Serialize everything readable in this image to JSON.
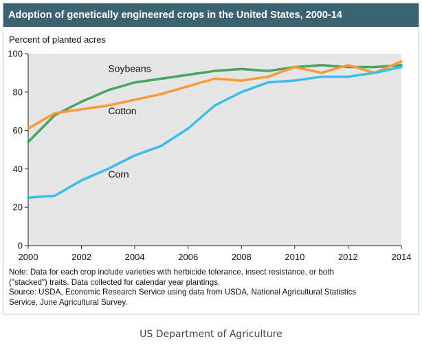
{
  "chart_data": {
    "type": "line",
    "title": "Adoption of genetically engineered crops in the United States, 2000-14",
    "ylabel": "Percent of planted acres",
    "xlabel": "",
    "x": [
      2000,
      2001,
      2002,
      2003,
      2004,
      2005,
      2006,
      2007,
      2008,
      2009,
      2010,
      2011,
      2012,
      2013,
      2014
    ],
    "xlim": [
      2000,
      2014
    ],
    "ylim": [
      0,
      100
    ],
    "x_ticks": [
      "2000",
      "2002",
      "2004",
      "2006",
      "2008",
      "2010",
      "2012",
      "2014"
    ],
    "y_ticks": [
      "0",
      "20",
      "40",
      "60",
      "80",
      "100"
    ],
    "grid": false,
    "series": [
      {
        "name": "Soybeans",
        "color": "#4aa564",
        "values": [
          54,
          68,
          75,
          81,
          85,
          87,
          89,
          91,
          92,
          91,
          93,
          94,
          93,
          93,
          94
        ]
      },
      {
        "name": "Cotton",
        "color": "#f89c3a",
        "values": [
          61,
          69,
          71,
          73,
          76,
          79,
          83,
          87,
          86,
          88,
          93,
          90,
          94,
          90,
          96
        ]
      },
      {
        "name": "Corn",
        "color": "#3bbfe8",
        "values": [
          25,
          26,
          34,
          40,
          47,
          52,
          61,
          73,
          80,
          85,
          86,
          88,
          88,
          90,
          93
        ]
      }
    ],
    "series_labels": [
      {
        "series": "Soybeans",
        "text": "Soybeans",
        "x": 2003,
        "y": 90.5
      },
      {
        "series": "Cotton",
        "text": "Cotton",
        "x": 2003,
        "y": 68.5
      },
      {
        "series": "Corn",
        "text": "Corn",
        "x": 2003,
        "y": 35.5
      }
    ]
  },
  "notes": {
    "line1": "Note: Data for each crop include varieties with herbicide tolerance, insect resistance, or both",
    "line2": "(\"stacked\") traits. Data collected for calendar year plantings.",
    "line3": "Source: USDA, Economic Research Service using data from USDA, National Agricultural Statistics",
    "line4": "Service, June Agricultural Survey."
  },
  "caption": "US Department of Agriculture",
  "colors": {
    "title_bar": "#3a6270",
    "plot_background": "#e6e6e6"
  }
}
